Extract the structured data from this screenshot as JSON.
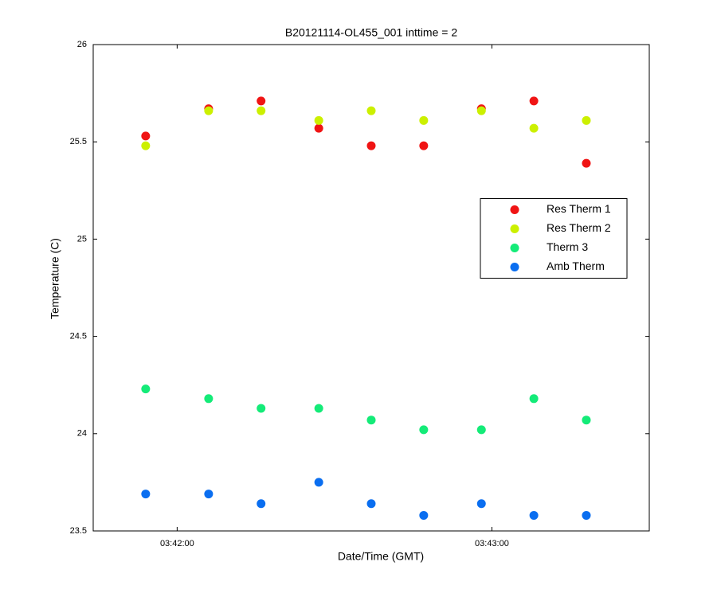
{
  "chart_data": {
    "type": "scatter",
    "title": "B20121114-OL455_001 inttime = 2",
    "x_label": "Date/Time (GMT)",
    "y_label": "Temperature (C)",
    "x": [
      "03:41:54",
      "03:42:06",
      "03:42:16",
      "03:42:27",
      "03:42:37",
      "03:42:47",
      "03:42:58",
      "03:43:08",
      "03:43:18"
    ],
    "xlim": [
      "03:41:44",
      "03:43:30"
    ],
    "xticks": [
      "03:42:00",
      "03:43:00"
    ],
    "ylim": [
      23.5,
      26
    ],
    "yticks": [
      23.5,
      24,
      24.5,
      25,
      25.5,
      26
    ],
    "grid": false,
    "legend": "east",
    "series": [
      {
        "name": "Res Therm 1",
        "color": "#f01414",
        "values": [
          25.53,
          25.67,
          25.71,
          25.57,
          25.48,
          25.48,
          25.67,
          25.71,
          25.39
        ]
      },
      {
        "name": "Res Therm 2",
        "color": "#ccf000",
        "values": [
          25.48,
          25.66,
          25.66,
          25.61,
          25.66,
          25.61,
          25.66,
          25.57,
          25.61
        ]
      },
      {
        "name": "Therm 3",
        "color": "#14eb78",
        "values": [
          24.23,
          24.18,
          24.13,
          24.13,
          24.07,
          24.02,
          24.02,
          24.18,
          24.07
        ]
      },
      {
        "name": "Amb Therm",
        "color": "#0a6ef0",
        "values": [
          23.69,
          23.69,
          23.64,
          23.75,
          23.64,
          23.58,
          23.64,
          23.58,
          23.58
        ]
      }
    ]
  }
}
